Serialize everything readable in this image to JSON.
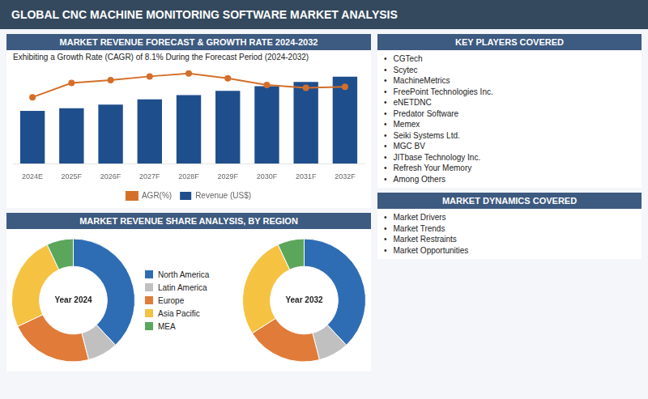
{
  "title": "GLOBAL CNC MACHINE MONITORING SOFTWARE MARKET ANALYSIS",
  "chart_data": [
    {
      "type": "bar",
      "title": "MARKET REVENUE FORECAST & GROWTH RATE 2024-2032",
      "subtitle": "Exhibiting a Growth Rate (CAGR) of 8.1% During the Forecast Period (2024-2032)",
      "categories": [
        "2024E",
        "2025F",
        "2026F",
        "2027F",
        "2028F",
        "2029F",
        "2030F",
        "2031F",
        "2032F"
      ],
      "series": [
        {
          "name": "Revenue (US$)",
          "type": "bar",
          "color": "#1f4e8c",
          "values": [
            1.0,
            1.05,
            1.12,
            1.22,
            1.3,
            1.38,
            1.47,
            1.55,
            1.65
          ]
        },
        {
          "name": "AGR(%)",
          "type": "line",
          "color": "#d46f2a",
          "marker": "circle",
          "axis": "y2",
          "values": [
            7.0,
            8.5,
            8.8,
            9.2,
            9.5,
            9.0,
            8.3,
            8.0,
            8.1
          ]
        }
      ],
      "ylim": [
        0,
        1.8
      ],
      "y2lim": [
        0,
        10
      ],
      "tick_labels": "x",
      "grid": false,
      "legend": "bottom"
    },
    {
      "type": "doughnut",
      "title": "MARKET REVENUE SHARE ANALYSIS, BY REGION",
      "categories": [
        "North America",
        "Latin America",
        "Europe",
        "Asia Pacific",
        "MEA"
      ],
      "colors": [
        "#2e6db4",
        "#c0c0c0",
        "#e07b39",
        "#f5c242",
        "#5ba65b"
      ],
      "pies": [
        {
          "title": "Year 2024",
          "values": [
            38,
            8,
            22,
            25,
            7
          ]
        },
        {
          "title": "Year 2032",
          "values": [
            38,
            8,
            20,
            27,
            7
          ]
        }
      ],
      "legend": "center"
    }
  ],
  "lists": [
    {
      "title": "KEY PLAYERS COVERED",
      "items": [
        "CGTech",
        "Scytec",
        "MachineMetrics",
        "FreePoint Technologies Inc.",
        "eNETDNC",
        "Predator Software",
        "Memex",
        "Seiki Systems Ltd.",
        "MGC BV",
        "JITbase Technology Inc.",
        "Refresh Your Memory",
        "Among Others"
      ]
    },
    {
      "title": "MARKET DYNAMICS COVERED",
      "items": [
        "Market Drivers",
        "Market Trends",
        "Market Restraints",
        "Market Opportunities"
      ]
    }
  ]
}
